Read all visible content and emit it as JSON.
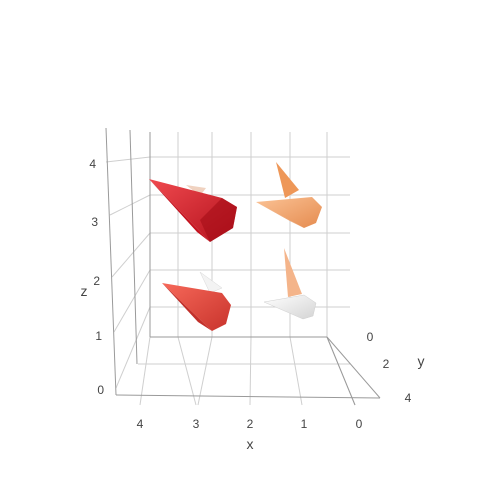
{
  "chart_data": {
    "type": "cone",
    "title": "",
    "axes": {
      "x": {
        "label": "x",
        "ticks": [
          "4",
          "3",
          "2",
          "1",
          "0"
        ],
        "range": [
          0,
          4
        ],
        "reversed": true
      },
      "y": {
        "label": "y",
        "ticks": [
          "0",
          "2",
          "4"
        ],
        "range": [
          0,
          4
        ]
      },
      "z": {
        "label": "z",
        "ticks": [
          "0",
          "1",
          "2",
          "3",
          "4"
        ],
        "range": [
          0,
          4
        ]
      }
    },
    "grid": true,
    "colorscale": "Reds",
    "series": [
      {
        "cones": [
          {
            "x": 3,
            "y": 1,
            "z": 3,
            "color": "#d81e2c"
          },
          {
            "x": 1,
            "y": 1,
            "z": 3,
            "color": "#f7b27c"
          },
          {
            "x": 3,
            "y": 1,
            "z": 1,
            "color": "#ea4a3f"
          },
          {
            "x": 1,
            "y": 1,
            "z": 1,
            "color": "#f4c7a8"
          },
          {
            "x": 3,
            "y": 3,
            "z": 3,
            "color": "#f0d2c0"
          },
          {
            "x": 1,
            "y": 3,
            "z": 3,
            "color": "#ee9758"
          },
          {
            "x": 3,
            "y": 3,
            "z": 1,
            "color": "#fde9de"
          },
          {
            "x": 1,
            "y": 3,
            "z": 1,
            "color": "#eeeeee"
          }
        ]
      }
    ]
  }
}
